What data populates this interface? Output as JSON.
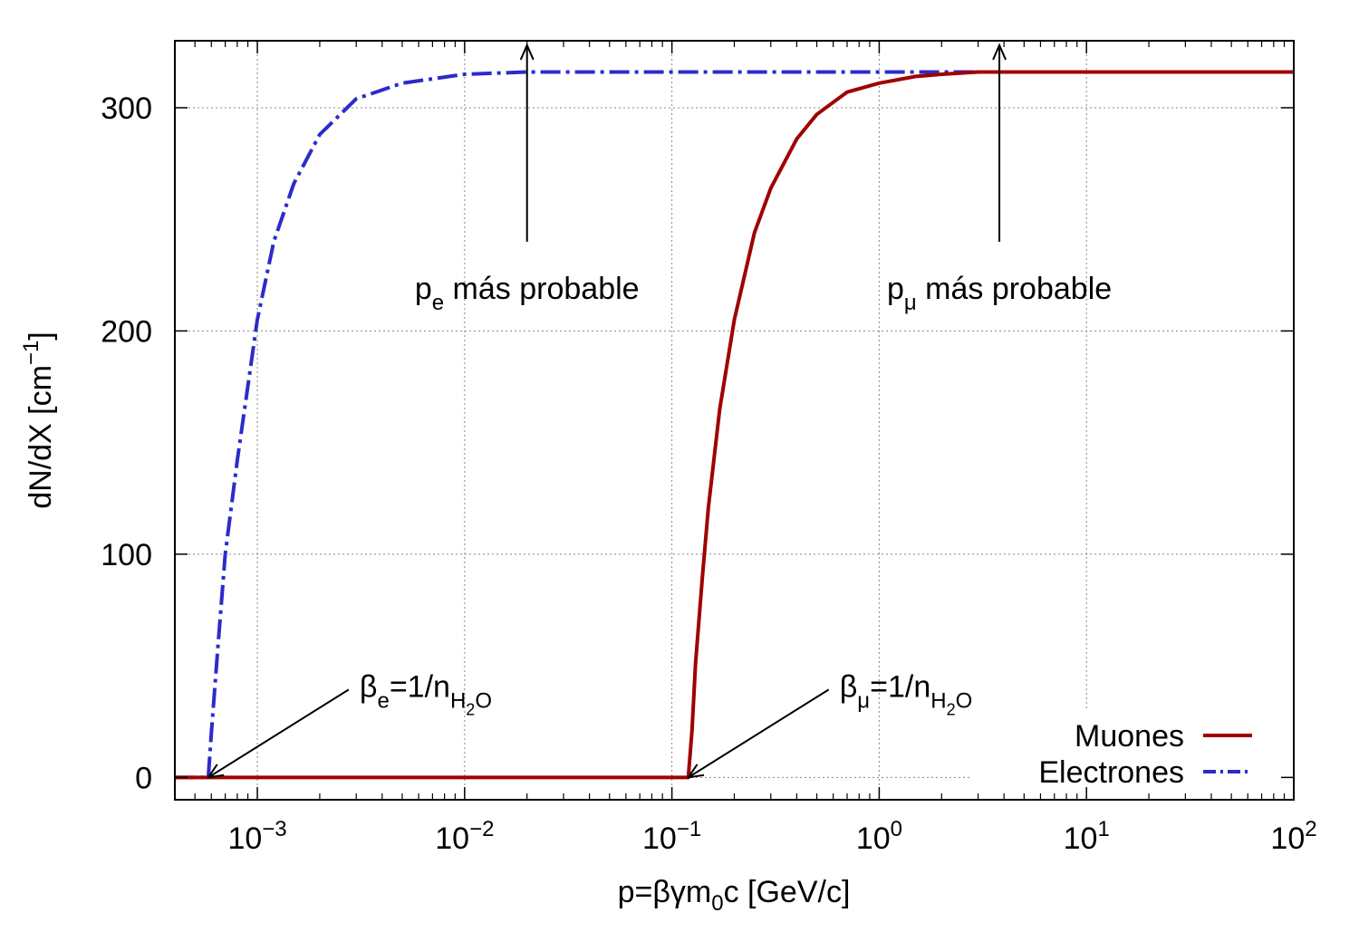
{
  "chart_data": {
    "type": "line",
    "xscale": "log",
    "xlim": [
      0.0004,
      100
    ],
    "ylim": [
      -10,
      330
    ],
    "grid": true,
    "legend_position": "bottom-right",
    "xlabel": {
      "main": "p=βγm",
      "sub": "0",
      "tail": "c [GeV/c]"
    },
    "ylabel": {
      "main": "dN/dX [cm",
      "sup": "−1",
      "tail": "]"
    },
    "x_ticks": [
      {
        "value": 0.001,
        "base": "10",
        "exp": "−3"
      },
      {
        "value": 0.01,
        "base": "10",
        "exp": "−2"
      },
      {
        "value": 0.1,
        "base": "10",
        "exp": "−1"
      },
      {
        "value": 1,
        "base": "10",
        "exp": "0"
      },
      {
        "value": 10,
        "base": "10",
        "exp": "1"
      },
      {
        "value": 100,
        "base": "10",
        "exp": "2"
      }
    ],
    "y_ticks": [
      {
        "value": 0,
        "label": "0"
      },
      {
        "value": 100,
        "label": "100"
      },
      {
        "value": 200,
        "label": "200"
      },
      {
        "value": 300,
        "label": "300"
      }
    ],
    "series": [
      {
        "name": "Muones",
        "color": "#a00000",
        "dash": "solid",
        "x": [
          0.0004,
          0.12,
          0.125,
          0.13,
          0.14,
          0.15,
          0.17,
          0.2,
          0.25,
          0.3,
          0.4,
          0.5,
          0.7,
          1,
          1.5,
          2,
          3,
          5,
          10,
          30,
          100
        ],
        "y": [
          0,
          0,
          21,
          51,
          89,
          121,
          165,
          205,
          244,
          264,
          286,
          297,
          307,
          311,
          314,
          315,
          316,
          316,
          316,
          316,
          316
        ]
      },
      {
        "name": "Electrones",
        "color": "#2b2bcc",
        "dash": "dash-dot",
        "x": [
          0.0004,
          0.00058,
          0.0006,
          0.00065,
          0.0007,
          0.0008,
          0.001,
          0.0012,
          0.0015,
          0.002,
          0.003,
          0.005,
          0.01,
          0.02,
          0.05,
          0.1,
          1,
          10,
          100
        ],
        "y": [
          0,
          0,
          20,
          62,
          100,
          142,
          205,
          240,
          266,
          288,
          304,
          311,
          315,
          316,
          316,
          316,
          316,
          316,
          316
        ]
      }
    ],
    "annotations": [
      {
        "id": "pe",
        "main": "p",
        "sub": "e",
        "tail": " más probable",
        "x": 0.02,
        "y_from": 240,
        "y_to": 328
      },
      {
        "id": "pmu",
        "main": "p",
        "sub": "μ",
        "tail": " más probable",
        "x": 3.8,
        "y_from": 240,
        "y_to": 328
      },
      {
        "id": "be",
        "main": "β",
        "sub": "e",
        "mid": "=1/n",
        "sub2": "H",
        "sub3": "2",
        "sub4": "O",
        "x_to": 0.00058,
        "y_to": 0
      },
      {
        "id": "bmu",
        "main": "β",
        "sub": "μ",
        "mid": "=1/n",
        "sub2": "H",
        "sub3": "2",
        "sub4": "O",
        "x_to": 0.12,
        "y_to": 0
      }
    ]
  }
}
